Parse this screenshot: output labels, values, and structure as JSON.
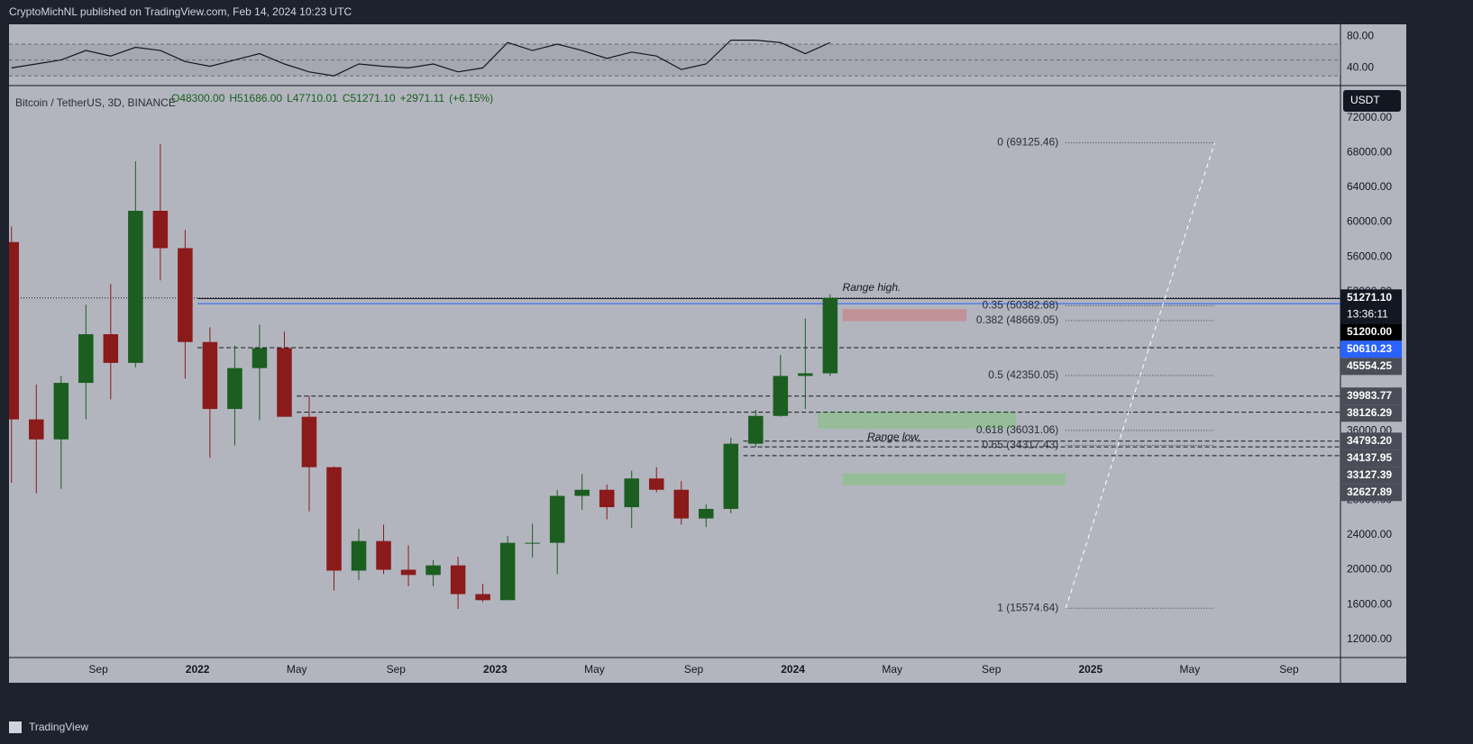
{
  "header": {
    "text": "CryptoMichNL published on TradingView.com, Feb 14, 2024 10:23 UTC"
  },
  "footer": {
    "text": "TradingView"
  },
  "chart_data": [
    {
      "type": "line",
      "title": "RSI",
      "x": [
        "2021-05",
        "2021-06",
        "2021-07",
        "2021-08",
        "2021-09",
        "2021-10",
        "2021-11",
        "2021-12",
        "2022-01",
        "2022-02",
        "2022-03",
        "2022-04",
        "2022-05",
        "2022-06",
        "2022-07",
        "2022-08",
        "2022-09",
        "2022-10",
        "2022-11",
        "2022-12",
        "2023-01",
        "2023-02",
        "2023-03",
        "2023-04",
        "2023-05",
        "2023-06",
        "2023-07",
        "2023-08",
        "2023-09",
        "2023-10",
        "2023-11",
        "2023-12",
        "2024-01",
        "2024-02"
      ],
      "values": [
        40,
        45,
        50,
        62,
        55,
        66,
        62,
        48,
        42,
        50,
        58,
        45,
        35,
        30,
        45,
        42,
        40,
        45,
        35,
        40,
        72,
        62,
        70,
        62,
        52,
        60,
        55,
        38,
        45,
        75,
        75,
        72,
        58,
        72
      ],
      "color": "#131722",
      "band": [
        30,
        70
      ],
      "midline": 50,
      "xlim": [
        "2021-05",
        "2025-11"
      ],
      "ylim": [
        20,
        95
      ],
      "yticks": [
        {
          "value": 80,
          "label": "80.00"
        },
        {
          "value": 40,
          "label": "40.00"
        }
      ]
    },
    {
      "type": "candlestick",
      "title": "Bitcoin / TetherUS, 3D, BINANCE",
      "ohlc_legend": [
        {
          "value": 48300,
          "label": "O48300.00"
        },
        {
          "value": 51686,
          "label": "H51686.00"
        },
        {
          "value": 47710.01,
          "label": "L47710.01"
        },
        {
          "value": 51271.1,
          "label": "C51271.10"
        },
        {
          "value": 2971.11,
          "label": "+2971.11"
        },
        {
          "value": 6.15,
          "label": "(+6.15%)"
        }
      ],
      "currency": "USDT",
      "x": [
        "2021-05",
        "2021-06",
        "2021-07",
        "2021-08",
        "2021-09",
        "2021-10",
        "2021-11",
        "2021-12",
        "2022-01",
        "2022-02",
        "2022-03",
        "2022-04",
        "2022-05",
        "2022-06",
        "2022-07",
        "2022-08",
        "2022-09",
        "2022-10",
        "2022-11",
        "2022-12",
        "2023-01",
        "2023-02",
        "2023-03",
        "2023-04",
        "2023-05",
        "2023-06",
        "2023-07",
        "2023-08",
        "2023-09",
        "2023-10",
        "2023-11",
        "2023-12",
        "2024-01",
        "2024-02"
      ],
      "open": [
        57700,
        37300,
        35000,
        41500,
        47100,
        43800,
        61300,
        57000,
        46200,
        38500,
        43200,
        45500,
        37600,
        31800,
        19900,
        23300,
        20000,
        19400,
        20500,
        17200,
        16500,
        23100,
        23100,
        28500,
        29200,
        27200,
        30500,
        29200,
        25900,
        27000,
        34500,
        37700,
        42300,
        42600
      ],
      "high": [
        59500,
        41300,
        42300,
        50500,
        52900,
        67000,
        69000,
        59100,
        47900,
        45800,
        48200,
        47400,
        40000,
        31900,
        24700,
        25200,
        22800,
        21100,
        21500,
        18400,
        23900,
        25300,
        29200,
        31000,
        29800,
        31400,
        31800,
        30200,
        27500,
        35200,
        38400,
        44700,
        48900,
        51700
      ],
      "low": [
        30000,
        28800,
        29300,
        37300,
        39600,
        43300,
        53300,
        42000,
        32900,
        34300,
        37200,
        37700,
        26700,
        17600,
        18800,
        19500,
        18100,
        18100,
        15500,
        16300,
        16500,
        21400,
        19500,
        26900,
        25800,
        24800,
        28900,
        25200,
        24900,
        26500,
        34100,
        37600,
        38500,
        42300
      ],
      "close": [
        37300,
        35000,
        41500,
        47100,
        43800,
        61300,
        57000,
        46200,
        38500,
        43200,
        45500,
        37600,
        31800,
        19900,
        23300,
        20000,
        19400,
        20500,
        17200,
        16500,
        23100,
        23100,
        28500,
        29200,
        27200,
        30500,
        29200,
        25900,
        27000,
        34500,
        37700,
        42300,
        42600,
        51271.1
      ],
      "up_color": "#1b5e20",
      "down_color": "#8b1a1a",
      "xlim": [
        "2021-05",
        "2025-11"
      ],
      "ylim": [
        9900,
        75500
      ],
      "xticks": [
        {
          "value": "2021-09",
          "label": "Sep"
        },
        {
          "value": "2022-01",
          "label": "2022"
        },
        {
          "value": "2022-05",
          "label": "May"
        },
        {
          "value": "2022-09",
          "label": "Sep"
        },
        {
          "value": "2023-01",
          "label": "2023"
        },
        {
          "value": "2023-05",
          "label": "May"
        },
        {
          "value": "2023-09",
          "label": "Sep"
        },
        {
          "value": "2024-01",
          "label": "2024"
        },
        {
          "value": "2024-05",
          "label": "May"
        },
        {
          "value": "2024-09",
          "label": "Sep"
        },
        {
          "value": "2025-01",
          "label": "2025"
        },
        {
          "value": "2025-05",
          "label": "May"
        },
        {
          "value": "2025-09",
          "label": "Sep"
        }
      ],
      "yticks": [
        {
          "value": 12000,
          "label": "12000.00"
        },
        {
          "value": 16000,
          "label": "16000.00"
        },
        {
          "value": 20000,
          "label": "20000.00"
        },
        {
          "value": 24000,
          "label": "24000.00"
        },
        {
          "value": 28000,
          "label": "28000.00"
        },
        {
          "value": 32000,
          "label": "32000.00"
        },
        {
          "value": 36000,
          "label": "36000.00"
        },
        {
          "value": 40000,
          "label": "40000.00"
        },
        {
          "value": 44000,
          "label": "44000.00"
        },
        {
          "value": 48000,
          "label": "48000.00"
        },
        {
          "value": 52000,
          "label": "52000.00"
        },
        {
          "value": 56000,
          "label": "56000.00"
        },
        {
          "value": 60000,
          "label": "60000.00"
        },
        {
          "value": 64000,
          "label": "64000.00"
        },
        {
          "value": 68000,
          "label": "68000.00"
        },
        {
          "value": 72000,
          "label": "72000.00"
        }
      ],
      "price_labels": [
        {
          "value": 51271.1,
          "label": "51271.10",
          "countdown": "13:36:11",
          "color": "#131722",
          "line": "dotted",
          "from": "2021-05"
        },
        {
          "value": 51200,
          "label": "51200.00",
          "color": "#000000",
          "line": "solid",
          "from": "2022-01"
        },
        {
          "value": 50610.23,
          "label": "50610.23",
          "color": "#2962ff",
          "line": "solid",
          "from": "2022-01"
        },
        {
          "value": 45554.25,
          "label": "45554.25",
          "color": "#4a4d57",
          "line": "dashed",
          "from": "2022-01"
        },
        {
          "value": 39983.77,
          "label": "39983.77",
          "color": "#4a4d57",
          "line": "dashed",
          "from": "2022-05"
        },
        {
          "value": 38126.29,
          "label": "38126.29",
          "color": "#4a4d57",
          "line": "dashed",
          "from": "2022-05"
        },
        {
          "value": 34793.2,
          "label": "34793.20",
          "color": "#4a4d57",
          "line": "dashed",
          "from": "2023-11"
        },
        {
          "value": 34137.95,
          "label": "34137.95",
          "color": "#4a4d57",
          "line": "dashed",
          "from": "2023-11"
        },
        {
          "value": 33127.39,
          "label": "33127.39",
          "color": "#4a4d57",
          "line": "dashed",
          "from": "2023-11"
        },
        {
          "value": 32627.89,
          "label": "32627.89",
          "color": "#4a4d57"
        }
      ],
      "fib": {
        "x": [
          "2024-12",
          "2025-06"
        ],
        "levels": [
          {
            "label": "0 (69125.46)",
            "price": 69125.46
          },
          {
            "label": "0.35 (50382.68)",
            "price": 50382.68
          },
          {
            "label": "0.382 (48669.05)",
            "price": 48669.05
          },
          {
            "label": "0.5 (42350.05)",
            "price": 42350.05
          },
          {
            "label": "0.618 (36031.06)",
            "price": 36031.06
          },
          {
            "label": "0.65 (34317.43)",
            "price": 34317.43
          },
          {
            "label": "1 (15574.64)",
            "price": 15574.64
          }
        ]
      },
      "boxes": [
        {
          "x": [
            "2024-03",
            "2024-08"
          ],
          "y": [
            48600,
            50000
          ],
          "color": "#c48b8f"
        },
        {
          "x": [
            "2024-02",
            "2024-10"
          ],
          "y": [
            36250,
            38200
          ],
          "color": "#8fbf8f"
        },
        {
          "x": [
            "2024-03",
            "2024-12"
          ],
          "y": [
            29700,
            31100
          ],
          "color": "#8fbf8f"
        }
      ],
      "annotations": [
        {
          "text": "Range high.",
          "x": "2024-03",
          "y": 52400
        },
        {
          "text": "Range low.",
          "x": "2024-04",
          "y": 35200
        }
      ]
    }
  ]
}
